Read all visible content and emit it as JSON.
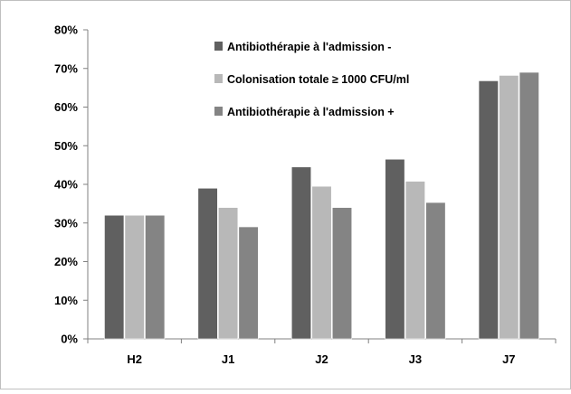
{
  "chart_data": {
    "type": "bar",
    "categories": [
      "H2",
      "J1",
      "J2",
      "J3",
      "J7"
    ],
    "series": [
      {
        "name": "Antibiothérapie à l'admission -",
        "color": "#606060",
        "values": [
          32,
          39,
          44.5,
          46.5,
          66.8
        ]
      },
      {
        "name": "Colonisation totale ≥ 1000 CFU/ml",
        "color": "#b8b8b8",
        "values": [
          32,
          34,
          39.5,
          40.8,
          68.2
        ]
      },
      {
        "name": "Antibiothérapie à l'admission +",
        "color": "#848484",
        "values": [
          32,
          29,
          34,
          35.3,
          69
        ]
      }
    ],
    "ylim": [
      0,
      80
    ],
    "yticks": [
      0,
      10,
      20,
      30,
      40,
      50,
      60,
      70,
      80
    ],
    "ytick_labels": [
      "0%",
      "10%",
      "20%",
      "30%",
      "40%",
      "50%",
      "60%",
      "70%",
      "80%"
    ],
    "grid": false,
    "legend_position": "top-left inside plot",
    "title": "",
    "xlabel": "",
    "ylabel": ""
  }
}
